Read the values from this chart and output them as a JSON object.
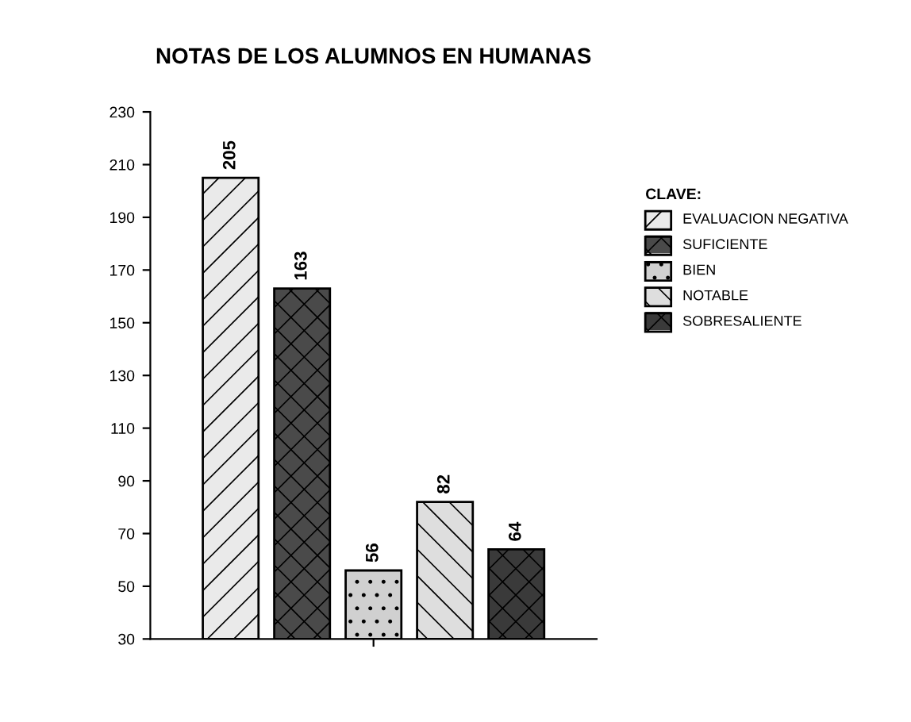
{
  "chart_data": {
    "type": "bar",
    "title": "NOTAS DE LOS ALUMNOS EN HUMANAS",
    "categories": [
      null
    ],
    "series": [
      {
        "name": "EVALUACION NEGATIVA",
        "color": "#eaeaea",
        "values": [
          205
        ],
        "value_labels": [
          "205"
        ]
      },
      {
        "name": "SUFICIENTE",
        "color": "#4a4a4a",
        "values": [
          163
        ],
        "value_labels": [
          "163"
        ]
      },
      {
        "name": "BIEN",
        "color": "#d0d0d0",
        "values": [
          56
        ],
        "value_labels": [
          "56"
        ]
      },
      {
        "name": "NOTABLE",
        "color": "#dedede",
        "values": [
          82
        ],
        "value_labels": [
          "82"
        ]
      },
      {
        "name": "SOBRESALIENTE",
        "color": "#3a3a3a",
        "values": [
          64
        ],
        "value_labels": [
          "64"
        ]
      }
    ],
    "ylim": [
      30,
      230
    ],
    "yticks": [
      30,
      50,
      70,
      90,
      110,
      130,
      150,
      170,
      190,
      210,
      230
    ],
    "legend": "right",
    "legend_title": "CLAVE:",
    "tick_labels": "y",
    "grid": false
  }
}
